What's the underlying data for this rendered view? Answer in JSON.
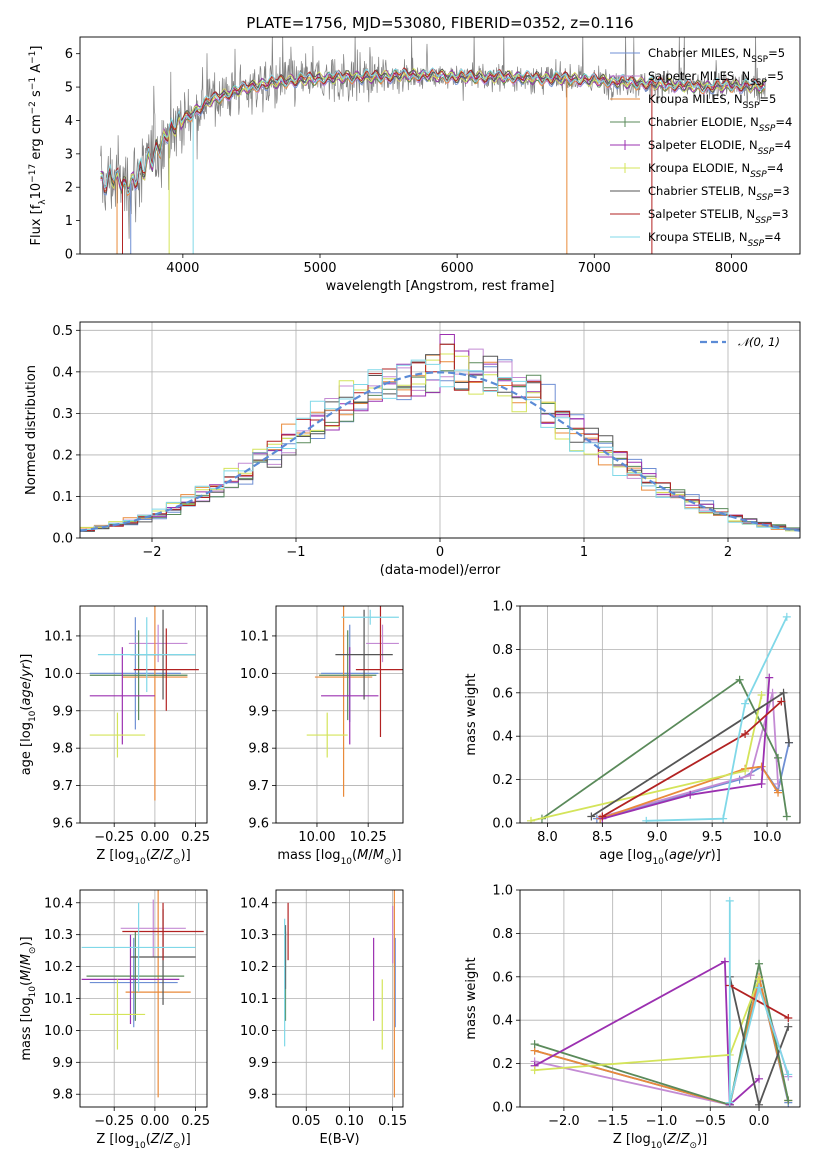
{
  "figure": {
    "title": "PLATE=1756, MJD=53080, FIBERID=0352, z=0.116"
  },
  "colors": {
    "MILES": [
      "#6f8fd4",
      "#c48bd4",
      "#e98a3a"
    ],
    "ELODIE": [
      "#5a8a5a",
      "#9b30b0",
      "#d4e45a"
    ],
    "STELIB": [
      "#555555",
      "#b22222",
      "#80d8e8"
    ],
    "data": "#808080"
  },
  "chart_data": [
    {
      "id": "spectrum",
      "type": "line",
      "xlabel": "wavelength [Angstrom, rest frame]",
      "ylabel": "Flux [f_λ 10^-17 erg cm^-2 s^-1 A^-1]",
      "xlim": [
        3250,
        8500
      ],
      "ylim": [
        0,
        6.5
      ],
      "xticks": [
        4000,
        5000,
        6000,
        7000,
        8000
      ],
      "yticks": [
        0,
        1,
        2,
        3,
        4,
        5,
        6
      ],
      "legend_position": "right",
      "legend": [
        "Chabrier MILES, N_SSP=5",
        "Salpeter MILES, N_SSP=5",
        "Kroupa MILES, N_SSP=5",
        "Chabrier ELODIE, N_SSP=4",
        "Salpeter ELODIE, N_SSP=4",
        "Kroupa ELODIE, N_SSP=4",
        "Chabrier STELIB, N_SSP=3",
        "Salpeter STELIB, N_SSP=3",
        "Kroupa STELIB, N_SSP=4"
      ],
      "continuum": {
        "x": [
          3400,
          3500,
          3600,
          3700,
          3800,
          3900,
          4000,
          4100,
          4200,
          4400,
          4600,
          4800,
          5000,
          5200,
          5400,
          5600,
          5800,
          6000,
          6200,
          6400,
          6600,
          6800,
          7000,
          7200,
          7400,
          7600,
          7800,
          8000,
          8250
        ],
        "y": [
          2.1,
          2.3,
          2.0,
          2.5,
          3.0,
          3.7,
          4.0,
          4.3,
          4.6,
          4.9,
          5.1,
          5.2,
          5.25,
          5.3,
          5.3,
          5.35,
          5.35,
          5.3,
          5.3,
          5.3,
          5.25,
          5.25,
          5.2,
          5.15,
          5.1,
          5.05,
          5.0,
          5.05,
          5.0
        ]
      }
    },
    {
      "id": "residuals",
      "type": "bar",
      "xlabel": "(data-model)/error",
      "ylabel": "Normed distribution",
      "xlim": [
        -2.5,
        2.5
      ],
      "ylim": [
        0,
        0.52
      ],
      "xticks": [
        -2,
        -1,
        0,
        1,
        2
      ],
      "yticks": [
        0.0,
        0.1,
        0.2,
        0.3,
        0.4,
        0.5
      ],
      "legend": [
        "𝒩(0, 1)"
      ],
      "legend_position": "top-right",
      "gaussian": {
        "mean": 0,
        "sigma": 1
      },
      "peak_bin_max": 0.49
    },
    {
      "id": "age-vs-Z",
      "type": "scatter",
      "xlabel": "Z [log10(Z/Z⊙)]",
      "ylabel": "age [log10(age/yr)]",
      "xlim": [
        -0.46,
        0.32
      ],
      "ylim": [
        9.6,
        10.18
      ],
      "xticks": [
        -0.25,
        0.0,
        0.25
      ],
      "yticks": [
        9.6,
        9.7,
        9.8,
        9.9,
        10.0,
        10.1
      ],
      "points": [
        {
          "x": -0.12,
          "y": 10.0,
          "xerr": 0.28,
          "yerr": 0.15,
          "c": "MILES.0"
        },
        {
          "x": 0.02,
          "y": 10.08,
          "xerr": 0.18,
          "yerr": 0.05,
          "c": "MILES.1"
        },
        {
          "x": 0.0,
          "y": 9.99,
          "xerr": 0.2,
          "yerr": 0.33,
          "c": "MILES.2"
        },
        {
          "x": -0.1,
          "y": 9.995,
          "xerr": 0.3,
          "yerr": 0.12,
          "c": "ELODIE.0"
        },
        {
          "x": -0.2,
          "y": 9.94,
          "xerr": 0.2,
          "yerr": 0.13,
          "c": "ELODIE.1"
        },
        {
          "x": -0.23,
          "y": 9.835,
          "xerr": 0.17,
          "yerr": 0.06,
          "c": "ELODIE.2"
        },
        {
          "x": 0.05,
          "y": 10.05,
          "xerr": 0.2,
          "yerr": 0.12,
          "c": "STELIB.0"
        },
        {
          "x": 0.07,
          "y": 10.01,
          "xerr": 0.2,
          "yerr": 0.11,
          "c": "STELIB.1"
        },
        {
          "x": -0.05,
          "y": 10.05,
          "xerr": 0.3,
          "yerr": 0.1,
          "c": "STELIB.2"
        }
      ]
    },
    {
      "id": "age-vs-mass",
      "type": "scatter",
      "xlabel": "mass [log10(M/M⊙)]",
      "ylabel": "",
      "xlim": [
        9.8,
        10.42
      ],
      "ylim": [
        9.6,
        10.18
      ],
      "xticks": [
        10.0,
        10.25
      ],
      "yticks": [
        9.6,
        9.7,
        9.8,
        9.9,
        10.0,
        10.1
      ],
      "points": [
        {
          "x": 10.16,
          "y": 10.0,
          "xerr": 0.14,
          "yerr": 0.13,
          "c": "MILES.0"
        },
        {
          "x": 10.32,
          "y": 10.08,
          "xerr": 0.08,
          "yerr": 0.05,
          "c": "MILES.1"
        },
        {
          "x": 10.13,
          "y": 9.99,
          "xerr": 0.14,
          "yerr": 0.32,
          "c": "MILES.2"
        },
        {
          "x": 10.15,
          "y": 9.995,
          "xerr": 0.14,
          "yerr": 0.12,
          "c": "ELODIE.0"
        },
        {
          "x": 10.16,
          "y": 9.94,
          "xerr": 0.14,
          "yerr": 0.13,
          "c": "ELODIE.1"
        },
        {
          "x": 10.05,
          "y": 9.835,
          "xerr": 0.1,
          "yerr": 0.06,
          "c": "ELODIE.2"
        },
        {
          "x": 10.23,
          "y": 10.05,
          "xerr": 0.14,
          "yerr": 0.12,
          "c": "STELIB.0"
        },
        {
          "x": 10.31,
          "y": 10.01,
          "xerr": 0.12,
          "yerr": 0.18,
          "c": "STELIB.1"
        },
        {
          "x": 10.26,
          "y": 10.15,
          "xerr": 0.14,
          "yerr": 0.02,
          "c": "STELIB.2"
        }
      ]
    },
    {
      "id": "weight-vs-age",
      "type": "line",
      "xlabel": "age [log10(age/yr)]",
      "ylabel": "mass weight",
      "xlim": [
        7.75,
        10.3
      ],
      "ylim": [
        0,
        1.0
      ],
      "xticks": [
        8.0,
        8.5,
        9.0,
        9.5,
        10.0
      ],
      "yticks": [
        0.0,
        0.2,
        0.4,
        0.6,
        0.8,
        1.0
      ],
      "series": [
        {
          "c": "MILES.0",
          "x": [
            8.45,
            9.75,
            9.95,
            10.1,
            10.2
          ],
          "y": [
            0.02,
            0.2,
            0.26,
            0.15,
            0.37
          ]
        },
        {
          "c": "MILES.1",
          "x": [
            8.5,
            9.85,
            10.05,
            10.1
          ],
          "y": [
            0.03,
            0.22,
            0.6,
            0.18
          ]
        },
        {
          "c": "MILES.2",
          "x": [
            8.48,
            9.8,
            9.95,
            10.1
          ],
          "y": [
            0.02,
            0.25,
            0.26,
            0.14
          ]
        },
        {
          "c": "ELODIE.0",
          "x": [
            7.95,
            9.75,
            10.1,
            10.18
          ],
          "y": [
            0.02,
            0.66,
            0.3,
            0.03
          ]
        },
        {
          "c": "ELODIE.1",
          "x": [
            8.5,
            9.3,
            9.95,
            10.02
          ],
          "y": [
            0.02,
            0.13,
            0.18,
            0.67
          ]
        },
        {
          "c": "ELODIE.2",
          "x": [
            7.85,
            9.8,
            9.95
          ],
          "y": [
            0.01,
            0.24,
            0.59
          ]
        },
        {
          "c": "STELIB.0",
          "x": [
            8.4,
            10.15,
            10.2
          ],
          "y": [
            0.03,
            0.6,
            0.37
          ]
        },
        {
          "c": "STELIB.1",
          "x": [
            8.5,
            9.8,
            10.13
          ],
          "y": [
            0.03,
            0.41,
            0.56
          ]
        },
        {
          "c": "STELIB.2",
          "x": [
            8.9,
            9.6,
            9.8,
            10.18
          ],
          "y": [
            0.01,
            0.02,
            0.55,
            0.95
          ]
        }
      ]
    },
    {
      "id": "mass-vs-Z",
      "type": "scatter",
      "xlabel": "Z [log10(Z/Z⊙)]",
      "ylabel": "mass [log10(M/M⊙)]",
      "xlim": [
        -0.46,
        0.32
      ],
      "ylim": [
        9.76,
        10.44
      ],
      "xticks": [
        -0.25,
        0.0,
        0.25
      ],
      "yticks": [
        9.8,
        9.9,
        10.0,
        10.1,
        10.2,
        10.3,
        10.4
      ],
      "points": [
        {
          "x": -0.13,
          "y": 10.15,
          "xerr": 0.27,
          "yerr": 0.14,
          "c": "MILES.0"
        },
        {
          "x": -0.01,
          "y": 10.32,
          "xerr": 0.2,
          "yerr": 0.09,
          "c": "MILES.1"
        },
        {
          "x": 0.02,
          "y": 10.12,
          "xerr": 0.2,
          "yerr": 0.33,
          "c": "MILES.2"
        },
        {
          "x": -0.12,
          "y": 10.17,
          "xerr": 0.3,
          "yerr": 0.14,
          "c": "ELODIE.0"
        },
        {
          "x": -0.15,
          "y": 10.16,
          "xerr": 0.3,
          "yerr": 0.14,
          "c": "ELODIE.1"
        },
        {
          "x": -0.23,
          "y": 10.05,
          "xerr": 0.17,
          "yerr": 0.11,
          "c": "ELODIE.2"
        },
        {
          "x": 0.05,
          "y": 10.23,
          "xerr": 0.2,
          "yerr": 0.15,
          "c": "STELIB.0"
        },
        {
          "x": 0.05,
          "y": 10.31,
          "xerr": 0.25,
          "yerr": 0.09,
          "c": "STELIB.1"
        },
        {
          "x": -0.1,
          "y": 10.26,
          "xerr": 0.35,
          "yerr": 0.14,
          "c": "STELIB.2"
        }
      ]
    },
    {
      "id": "mass-vs-EBV",
      "type": "scatter",
      "xlabel": "E(B-V)",
      "ylabel": "",
      "xlim": [
        0.015,
        0.162
      ],
      "ylim": [
        9.76,
        10.44
      ],
      "xticks": [
        0.05,
        0.1,
        0.15
      ],
      "yticks": [
        9.8,
        9.9,
        10.0,
        10.1,
        10.2,
        10.3,
        10.4
      ],
      "points": [
        {
          "x": 0.153,
          "y": 10.15,
          "xerr": 0,
          "yerr": 0.14,
          "c": "MILES.0"
        },
        {
          "x": 0.15,
          "y": 10.3,
          "xerr": 0,
          "yerr": 0.09,
          "c": "MILES.1"
        },
        {
          "x": 0.152,
          "y": 10.12,
          "xerr": 0,
          "yerr": 0.33,
          "c": "MILES.2"
        },
        {
          "x": 0.026,
          "y": 10.17,
          "xerr": 0,
          "yerr": 0.14,
          "c": "ELODIE.0"
        },
        {
          "x": 0.128,
          "y": 10.16,
          "xerr": 0,
          "yerr": 0.13,
          "c": "ELODIE.1"
        },
        {
          "x": 0.138,
          "y": 10.05,
          "xerr": 0,
          "yerr": 0.11,
          "c": "ELODIE.2"
        },
        {
          "x": 0.026,
          "y": 10.23,
          "xerr": 0,
          "yerr": 0.1,
          "c": "STELIB.0"
        },
        {
          "x": 0.029,
          "y": 10.31,
          "xerr": 0,
          "yerr": 0.09,
          "c": "STELIB.1"
        },
        {
          "x": 0.025,
          "y": 10.15,
          "xerr": 0,
          "yerr": 0.2,
          "c": "STELIB.2"
        }
      ]
    },
    {
      "id": "weight-vs-Z",
      "type": "line",
      "xlabel": "Z [log10(Z/Z⊙)]",
      "ylabel": "mass weight",
      "xlim": [
        -2.45,
        0.42
      ],
      "ylim": [
        0,
        1.0
      ],
      "xticks": [
        -2.0,
        -1.5,
        -1.0,
        -0.5,
        0.0
      ],
      "yticks": [
        0.0,
        0.2,
        0.4,
        0.6,
        0.8,
        1.0
      ],
      "series": [
        {
          "c": "MILES.0",
          "x": [
            -2.3,
            -0.3,
            0.0,
            0.3
          ],
          "y": [
            0.26,
            0.01,
            0.6,
            0.02
          ]
        },
        {
          "c": "MILES.1",
          "x": [
            -2.3,
            -0.3,
            0.0,
            0.3
          ],
          "y": [
            0.21,
            0.01,
            0.58,
            0.14
          ]
        },
        {
          "c": "MILES.2",
          "x": [
            -2.3,
            -0.3,
            0.0,
            0.3
          ],
          "y": [
            0.26,
            0.01,
            0.6,
            0.03
          ]
        },
        {
          "c": "ELODIE.0",
          "x": [
            -2.3,
            -0.3,
            0.0,
            0.3
          ],
          "y": [
            0.29,
            0.01,
            0.66,
            0.03
          ]
        },
        {
          "c": "ELODIE.1",
          "x": [
            -2.3,
            -0.35,
            -0.3,
            0.0
          ],
          "y": [
            0.19,
            0.67,
            0.01,
            0.13
          ]
        },
        {
          "c": "ELODIE.2",
          "x": [
            -2.3,
            -0.3,
            0.0
          ],
          "y": [
            0.17,
            0.24,
            0.59
          ]
        },
        {
          "c": "STELIB.0",
          "x": [
            -0.3,
            0.0,
            0.3
          ],
          "y": [
            0.6,
            0.01,
            0.37
          ]
        },
        {
          "c": "STELIB.1",
          "x": [
            -0.3,
            0.3
          ],
          "y": [
            0.56,
            0.41
          ]
        },
        {
          "c": "STELIB.2",
          "x": [
            -0.3,
            -0.3,
            0.0,
            0.3
          ],
          "y": [
            0.95,
            0.02,
            0.55,
            0.15
          ]
        }
      ]
    }
  ]
}
